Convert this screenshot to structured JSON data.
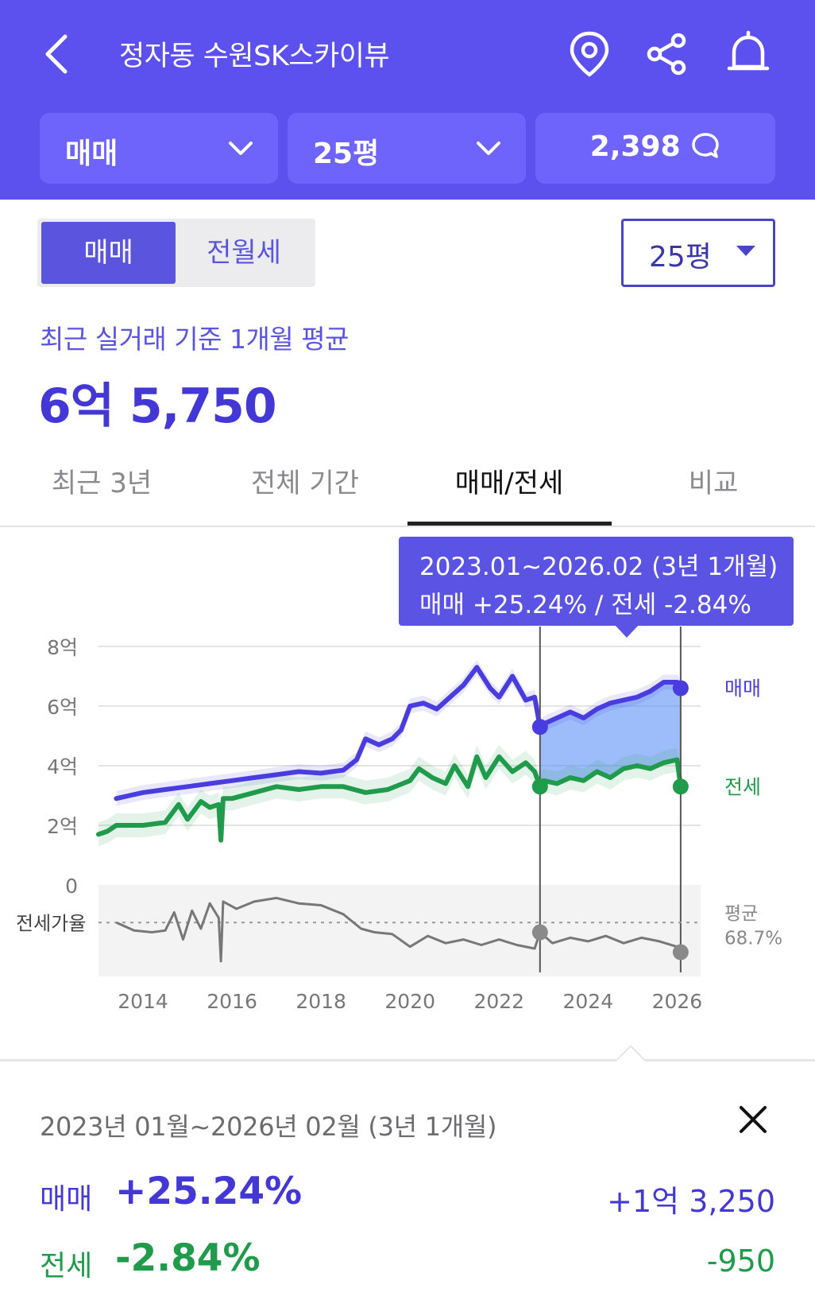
{
  "header": {
    "title": "정자동 수원SK스카이뷰",
    "filters": [
      {
        "label": "매매"
      },
      {
        "label": "25평"
      }
    ],
    "comment_count": "2,398"
  },
  "segment": {
    "active": "매매",
    "inactive": "전월세"
  },
  "size_select": {
    "value": "25평"
  },
  "basis_text": "최근 실거래 기준 1개월 평균",
  "avg_price": "6억 5,750",
  "tabs": [
    "최근 3년",
    "전체 기간",
    "매매/전세",
    "비교"
  ],
  "active_tab": "매매/전세",
  "tooltip": {
    "line1": "2023.01~2026.02 (3년 1개월)",
    "line2": "매매 +25.24%  /  전세 -2.84%"
  },
  "chart_data": {
    "type": "line",
    "x_unit": "year",
    "xlim": [
      2013.0,
      2026.6
    ],
    "ylim": [
      0,
      8
    ],
    "y_tick_labels": [
      "0",
      "2억",
      "4억",
      "6억",
      "8억"
    ],
    "x_tick_labels": [
      "2014",
      "2016",
      "2018",
      "2020",
      "2022",
      "2024",
      "2026"
    ],
    "series": [
      {
        "name": "매매",
        "color": "#4a3de0",
        "x": [
          2013.4,
          2013.7,
          2014.0,
          2014.5,
          2015.0,
          2015.5,
          2016.0,
          2016.5,
          2017.0,
          2017.5,
          2018.0,
          2018.5,
          2018.8,
          2019.0,
          2019.3,
          2019.6,
          2019.8,
          2020.0,
          2020.3,
          2020.6,
          2020.9,
          2021.2,
          2021.5,
          2021.8,
          2022.0,
          2022.3,
          2022.6,
          2022.8,
          2022.92,
          2023.0,
          2023.3,
          2023.6,
          2023.9,
          2024.2,
          2024.5,
          2024.8,
          2025.1,
          2025.4,
          2025.7,
          2026.0,
          2026.08
        ],
        "y": [
          2.9,
          3.0,
          3.1,
          3.2,
          3.3,
          3.4,
          3.5,
          3.6,
          3.7,
          3.8,
          3.75,
          3.85,
          4.2,
          4.9,
          4.7,
          4.9,
          5.2,
          6.0,
          6.1,
          5.9,
          6.3,
          6.7,
          7.3,
          6.6,
          6.3,
          7.0,
          6.2,
          6.3,
          5.3,
          5.4,
          5.6,
          5.8,
          5.6,
          5.9,
          6.1,
          6.2,
          6.3,
          6.5,
          6.8,
          6.8,
          6.6
        ]
      },
      {
        "name": "전세",
        "color": "#1f9b4b",
        "x": [
          2013.0,
          2013.2,
          2013.4,
          2014.0,
          2014.5,
          2014.8,
          2015.0,
          2015.3,
          2015.5,
          2015.7,
          2015.75,
          2015.8,
          2016.0,
          2016.5,
          2017.0,
          2017.5,
          2018.0,
          2018.5,
          2019.0,
          2019.5,
          2020.0,
          2020.2,
          2020.5,
          2020.8,
          2021.0,
          2021.3,
          2021.5,
          2021.7,
          2022.0,
          2022.3,
          2022.6,
          2022.8,
          2022.92,
          2023.0,
          2023.3,
          2023.6,
          2023.9,
          2024.2,
          2024.5,
          2024.8,
          2025.1,
          2025.4,
          2025.7,
          2026.0,
          2026.08
        ],
        "y": [
          1.7,
          1.8,
          2.0,
          2.0,
          2.1,
          2.7,
          2.2,
          2.8,
          2.6,
          2.7,
          1.5,
          2.9,
          2.9,
          3.1,
          3.3,
          3.2,
          3.3,
          3.3,
          3.1,
          3.2,
          3.5,
          3.9,
          3.6,
          3.4,
          4.0,
          3.3,
          4.3,
          3.6,
          4.3,
          3.8,
          4.1,
          3.8,
          3.3,
          3.5,
          3.4,
          3.6,
          3.5,
          3.8,
          3.6,
          3.9,
          4.0,
          3.9,
          4.1,
          4.2,
          3.3
        ]
      }
    ],
    "highlight_range": {
      "start": 2022.92,
      "end": 2026.08
    },
    "series_labels": {
      "sale": "매매",
      "jeonse": "전세"
    },
    "ratio_label": "전세가율",
    "ratio_avg_label": "평균",
    "ratio_avg_value": "68.7%",
    "ratio_series": {
      "x": [
        2013.4,
        2013.8,
        2014.2,
        2014.5,
        2014.7,
        2014.9,
        2015.1,
        2015.3,
        2015.5,
        2015.7,
        2015.75,
        2015.8,
        2016.1,
        2016.5,
        2017.0,
        2017.5,
        2018.0,
        2018.5,
        2018.9,
        2019.2,
        2019.6,
        2020.0,
        2020.4,
        2020.8,
        2021.2,
        2021.6,
        2022.0,
        2022.4,
        2022.8,
        2022.92,
        2023.2,
        2023.6,
        2024.0,
        2024.4,
        2024.8,
        2025.2,
        2025.6,
        2026.0,
        2026.08
      ],
      "y": [
        68.7,
        66.5,
        66.0,
        66.5,
        71.5,
        64.0,
        72.0,
        67.0,
        74.0,
        70.0,
        58.0,
        74.5,
        72.5,
        74.5,
        75.5,
        74.0,
        73.5,
        71.0,
        67.0,
        66.0,
        65.5,
        62.0,
        65.0,
        63.0,
        64.0,
        62.5,
        64.0,
        62.5,
        61.5,
        66.0,
        63.0,
        64.5,
        63.5,
        65.0,
        63.0,
        64.5,
        63.5,
        62.0,
        60.5
      ]
    },
    "ratio_ylim": [
      56,
      78
    ]
  },
  "detail": {
    "range_text": "2023년 01월~2026년 02월 (3년 1개월)",
    "rows": [
      {
        "label": "매매",
        "pct": "+25.24%",
        "diff": "+1억 3,250"
      },
      {
        "label": "전세",
        "pct": "-2.84%",
        "diff": "-950"
      }
    ]
  },
  "colors": {
    "brand": "#5c50ee",
    "sale": "#4338d6",
    "jeonse": "#1f9b4b"
  }
}
